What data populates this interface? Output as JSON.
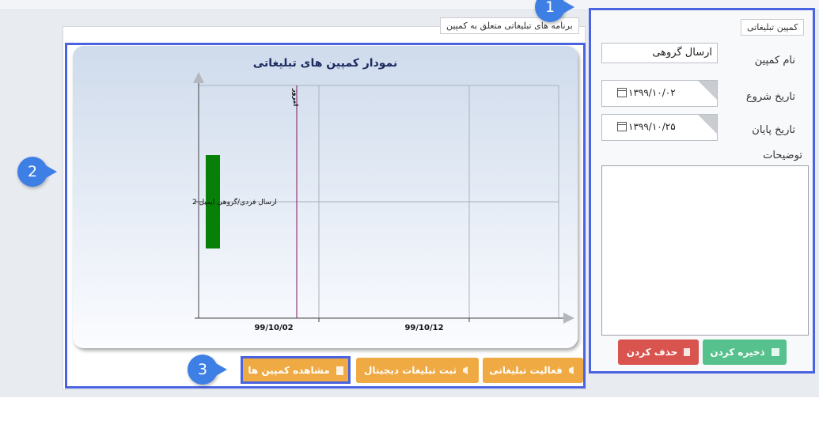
{
  "right_panel": {
    "legend": "کمپین تبلیغاتی",
    "campaign_name_label": "نام کمپین",
    "campaign_name_value": "ارسال گروهی",
    "start_date_label": "تاریخ شروع",
    "start_date_value": "۱۳۹۹/۱۰/۰۲",
    "end_date_label": "تاریخ پایان",
    "end_date_value": "۱۳۹۹/۱۰/۲۵",
    "description_label": "توضیحات",
    "description_value": "",
    "save_label": "ذخیره کردن",
    "delete_label": "حذف کردن"
  },
  "left_panel": {
    "legend": "برنامه های تبلیغاتی متعلق به کمپین"
  },
  "chart_data": {
    "type": "bar",
    "title": "نمودار کمپین های تبلیغاتی",
    "orientation": "horizontal-gantt",
    "categories": [
      "ارسال فردی/گروهی ایمیل 2"
    ],
    "x_tick_labels": [
      "99/10/02",
      "99/10/12"
    ],
    "today_marker_label": "امروز",
    "series": [
      {
        "values": [
          {
            "start": "99/09/30",
            "end": "99/10/01"
          }
        ]
      }
    ],
    "bar_color": "#068006",
    "today_color": "#7a1a5a",
    "grid": true
  },
  "bottom_buttons": {
    "activity_label": "فعالیت تبلیغاتی",
    "digital_label": "ثبت تبلیغات دیجیتال",
    "view_label": "مشاهده کمپین ها"
  },
  "callouts": {
    "one": "1",
    "two": "2",
    "three": "3"
  },
  "icons": {
    "calendar": "calendar-icon",
    "save": "floppy-icon",
    "delete": "trash-icon",
    "megaphone": "megaphone-icon",
    "bullhorn": "bullhorn-icon",
    "document": "document-icon"
  },
  "colors": {
    "accent_outline": "#4a63e0",
    "callout": "#3e7fe6",
    "save": "#56c18c",
    "delete": "#d9534f",
    "orange": "#efaa43"
  }
}
